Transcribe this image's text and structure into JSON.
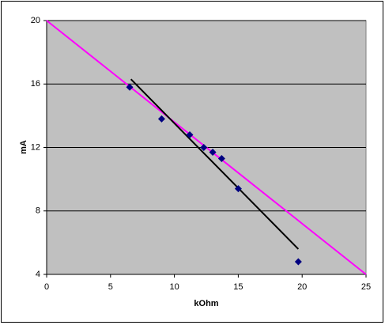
{
  "chart_data": {
    "type": "scatter",
    "x_label": "kOhm",
    "y_label": "mA",
    "xlim": [
      0,
      25
    ],
    "xticks": [
      0,
      5,
      10,
      15,
      20,
      25
    ],
    "ylim": [
      4,
      20
    ],
    "yticks": [
      4,
      8,
      12,
      16,
      20
    ],
    "grid": true,
    "series": [
      {
        "kind": "line",
        "color": "#ff00ff",
        "x": [
          0,
          25
        ],
        "values": [
          20,
          4
        ]
      },
      {
        "kind": "line",
        "color": "#000000",
        "x": [
          6.6,
          19.7
        ],
        "values": [
          16.3,
          5.6
        ]
      },
      {
        "kind": "markers",
        "color": "#000080",
        "x": [
          6.5,
          9.0,
          11.2,
          12.3,
          13.0,
          13.7,
          15.0,
          19.7
        ],
        "values": [
          15.8,
          13.8,
          12.8,
          12.0,
          11.7,
          11.3,
          9.4,
          4.8
        ]
      }
    ]
  }
}
